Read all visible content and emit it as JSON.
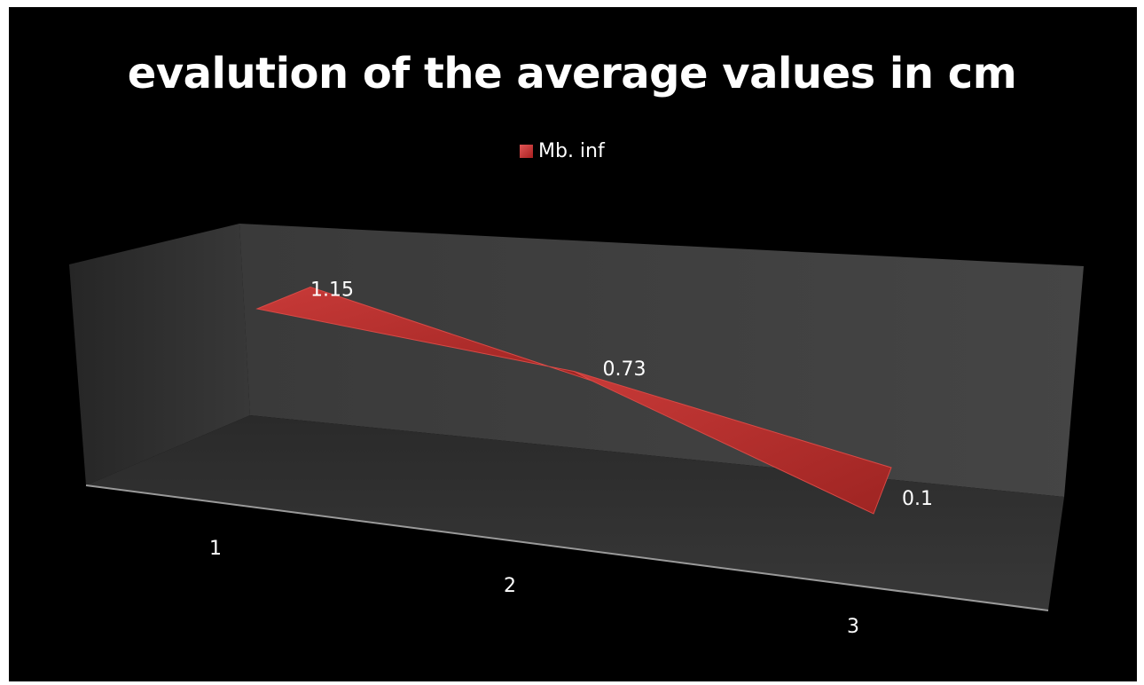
{
  "chart_data": {
    "type": "area",
    "title": "evalution of the average values in cm",
    "categories": [
      "1",
      "2",
      "3"
    ],
    "series": [
      {
        "name": "Mb. inf",
        "values": [
          1.15,
          0.73,
          0.1
        ]
      }
    ],
    "data_labels": [
      "1.15",
      "0.73",
      "0.1"
    ],
    "legend_position": "top",
    "grid": false,
    "three_d": true,
    "colors": {
      "background": "#000000",
      "series": "#c0302e",
      "text": "#ffffff",
      "back_wall": "#3c3c3c",
      "side_wall": "#2e2e2e",
      "floor": "#333333"
    }
  }
}
